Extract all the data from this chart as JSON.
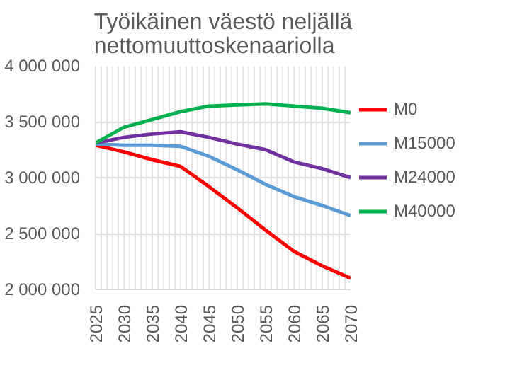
{
  "chart_data": {
    "type": "line",
    "title": "Työikäinen väestö neljällä nettomuuttoskenaariolla",
    "x": [
      2025,
      2030,
      2035,
      2040,
      2045,
      2050,
      2055,
      2060,
      2065,
      2070
    ],
    "xlim": [
      2025,
      2070
    ],
    "xticks": [
      2025,
      {
        "value": 2026,
        "label": null
      },
      {
        "value": 2027,
        "label": null
      },
      {
        "value": 2028,
        "label": null
      },
      {
        "value": 2029,
        "label": null
      },
      2030,
      {
        "value": 2031,
        "label": null
      },
      {
        "value": 2032,
        "label": null
      },
      {
        "value": 2033,
        "label": null
      },
      {
        "value": 2034,
        "label": null
      },
      2035,
      {
        "value": 2036,
        "label": null
      },
      {
        "value": 2037,
        "label": null
      },
      {
        "value": 2038,
        "label": null
      },
      {
        "value": 2039,
        "label": null
      },
      2040,
      {
        "value": 2041,
        "label": null
      },
      {
        "value": 2042,
        "label": null
      },
      {
        "value": 2043,
        "label": null
      },
      {
        "value": 2044,
        "label": null
      },
      2045,
      {
        "value": 2046,
        "label": null
      },
      {
        "value": 2047,
        "label": null
      },
      {
        "value": 2048,
        "label": null
      },
      {
        "value": 2049,
        "label": null
      },
      2050,
      {
        "value": 2051,
        "label": null
      },
      {
        "value": 2052,
        "label": null
      },
      {
        "value": 2053,
        "label": null
      },
      {
        "value": 2054,
        "label": null
      },
      2055,
      {
        "value": 2056,
        "label": null
      },
      {
        "value": 2057,
        "label": null
      },
      {
        "value": 2058,
        "label": null
      },
      {
        "value": 2059,
        "label": null
      },
      2060,
      {
        "value": 2061,
        "label": null
      },
      {
        "value": 2062,
        "label": null
      },
      {
        "value": 2063,
        "label": null
      },
      {
        "value": 2064,
        "label": null
      },
      2065,
      {
        "value": 2066,
        "label": null
      },
      {
        "value": 2067,
        "label": null
      },
      {
        "value": 2068,
        "label": null
      },
      {
        "value": 2069,
        "label": null
      },
      2070
    ],
    "ylim": [
      2000000,
      4000000
    ],
    "yticks": [
      {
        "value": 2000000,
        "label": "2 000 000"
      },
      {
        "value": 2500000,
        "label": "2 500 000"
      },
      {
        "value": 3000000,
        "label": "3 000 000"
      },
      {
        "value": 3500000,
        "label": "3 500 000"
      },
      {
        "value": 4000000,
        "label": "4 000 000"
      }
    ],
    "grid": true,
    "legend": "right",
    "marker": "none",
    "line_style": "solid",
    "series": [
      {
        "name": "M0",
        "color": "#ff0000",
        "values": [
          3290000,
          3230000,
          3160000,
          3100000,
          2920000,
          2730000,
          2530000,
          2340000,
          2210000,
          2100000
        ]
      },
      {
        "name": "M15000",
        "color": "#5b9bd5",
        "values": [
          3300000,
          3290000,
          3290000,
          3280000,
          3190000,
          3070000,
          2940000,
          2830000,
          2750000,
          2660000
        ]
      },
      {
        "name": "M24000",
        "color": "#7030a0",
        "values": [
          3310000,
          3360000,
          3390000,
          3410000,
          3360000,
          3300000,
          3250000,
          3140000,
          3080000,
          3000000
        ]
      },
      {
        "name": "M40000",
        "color": "#00b050",
        "values": [
          3310000,
          3450000,
          3520000,
          3590000,
          3640000,
          3650000,
          3660000,
          3640000,
          3620000,
          3580000
        ]
      }
    ]
  }
}
